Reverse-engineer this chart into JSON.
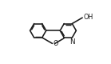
{
  "bg_color": "#ffffff",
  "line_color": "#1a1a1a",
  "lw": 1.15,
  "fs": 5.8,
  "figsize": [
    1.39,
    0.8
  ],
  "dpi": 100,
  "N_label": "N",
  "OH_label": "OH",
  "O_label": "O",
  "xlim": [
    -2.8,
    3.2
  ],
  "ylim": [
    -2.2,
    2.2
  ]
}
